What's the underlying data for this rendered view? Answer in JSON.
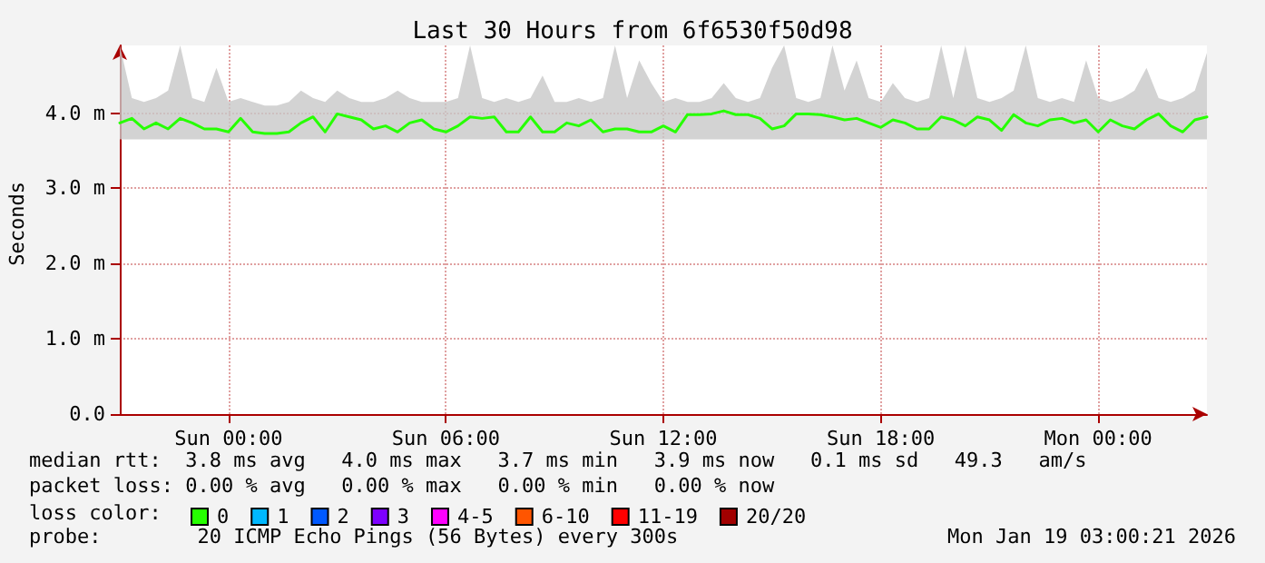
{
  "chart_data": {
    "type": "line",
    "title": "Last 30 Hours from 6f6530f50d98",
    "ylabel": "Seconds",
    "x": [
      "2026-01-17T21:00",
      "2026-01-17T21:20",
      "2026-01-17T21:40",
      "2026-01-17T22:00",
      "2026-01-17T22:20",
      "2026-01-17T22:40",
      "2026-01-17T23:00",
      "2026-01-17T23:20",
      "2026-01-17T23:40",
      "2026-01-18T00:00",
      "2026-01-18T00:20",
      "2026-01-18T00:40",
      "2026-01-18T01:00",
      "2026-01-18T01:20",
      "2026-01-18T01:40",
      "2026-01-18T02:00",
      "2026-01-18T02:20",
      "2026-01-18T02:40",
      "2026-01-18T03:00",
      "2026-01-18T03:20",
      "2026-01-18T03:40",
      "2026-01-18T04:00",
      "2026-01-18T04:20",
      "2026-01-18T04:40",
      "2026-01-18T05:00",
      "2026-01-18T05:20",
      "2026-01-18T05:40",
      "2026-01-18T06:00",
      "2026-01-18T06:20",
      "2026-01-18T06:40",
      "2026-01-18T07:00",
      "2026-01-18T07:20",
      "2026-01-18T07:40",
      "2026-01-18T08:00",
      "2026-01-18T08:20",
      "2026-01-18T08:40",
      "2026-01-18T09:00",
      "2026-01-18T09:20",
      "2026-01-18T09:40",
      "2026-01-18T10:00",
      "2026-01-18T10:20",
      "2026-01-18T10:40",
      "2026-01-18T11:00",
      "2026-01-18T11:20",
      "2026-01-18T11:40",
      "2026-01-18T12:00",
      "2026-01-18T12:20",
      "2026-01-18T12:40",
      "2026-01-18T13:00",
      "2026-01-18T13:20",
      "2026-01-18T13:40",
      "2026-01-18T14:00",
      "2026-01-18T14:20",
      "2026-01-18T14:40",
      "2026-01-18T15:00",
      "2026-01-18T15:20",
      "2026-01-18T15:40",
      "2026-01-18T16:00",
      "2026-01-18T16:20",
      "2026-01-18T16:40",
      "2026-01-18T17:00",
      "2026-01-18T17:20",
      "2026-01-18T17:40",
      "2026-01-18T18:00",
      "2026-01-18T18:20",
      "2026-01-18T18:40",
      "2026-01-18T19:00",
      "2026-01-18T19:20",
      "2026-01-18T19:40",
      "2026-01-18T20:00",
      "2026-01-18T20:20",
      "2026-01-18T20:40",
      "2026-01-18T21:00",
      "2026-01-18T21:20",
      "2026-01-18T21:40",
      "2026-01-18T22:00",
      "2026-01-18T22:20",
      "2026-01-18T22:40",
      "2026-01-18T23:00",
      "2026-01-18T23:20",
      "2026-01-18T23:40",
      "2026-01-19T00:00",
      "2026-01-19T00:20",
      "2026-01-19T00:40",
      "2026-01-19T01:00",
      "2026-01-19T01:20",
      "2026-01-19T01:40",
      "2026-01-19T02:00",
      "2026-01-19T02:20",
      "2026-01-19T02:40",
      "2026-01-19T03:00"
    ],
    "series": [
      {
        "name": "0",
        "color": "#26ff00",
        "values": [
          3.87,
          3.93,
          3.79,
          3.87,
          3.79,
          3.93,
          3.87,
          3.79,
          3.79,
          3.75,
          3.93,
          3.75,
          3.73,
          3.73,
          3.75,
          3.87,
          3.95,
          3.75,
          3.99,
          3.95,
          3.91,
          3.79,
          3.83,
          3.75,
          3.87,
          3.91,
          3.79,
          3.75,
          3.83,
          3.95,
          3.93,
          3.95,
          3.75,
          3.75,
          3.95,
          3.75,
          3.75,
          3.87,
          3.83,
          3.91,
          3.75,
          3.79,
          3.79,
          3.75,
          3.75,
          3.83,
          3.75,
          3.98,
          3.98,
          3.99,
          4.03,
          3.98,
          3.98,
          3.93,
          3.79,
          3.83,
          3.99,
          3.99,
          3.98,
          3.95,
          3.91,
          3.93,
          3.87,
          3.81,
          3.91,
          3.87,
          3.79,
          3.79,
          3.95,
          3.91,
          3.83,
          3.95,
          3.91,
          3.77,
          3.98,
          3.87,
          3.83,
          3.91,
          3.93,
          3.87,
          3.91,
          3.75,
          3.91,
          3.83,
          3.79,
          3.91,
          3.99,
          3.83,
          3.75,
          3.91,
          3.95
        ],
        "lower": [
          3.65,
          3.65,
          3.65,
          3.65,
          3.65,
          3.65,
          3.65,
          3.65,
          3.65,
          3.65,
          3.65,
          3.65,
          3.65,
          3.65,
          3.65,
          3.65,
          3.65,
          3.65,
          3.65,
          3.65,
          3.65,
          3.65,
          3.65,
          3.65,
          3.65,
          3.65,
          3.65,
          3.65,
          3.65,
          3.65,
          3.65,
          3.65,
          3.65,
          3.65,
          3.65,
          3.65,
          3.65,
          3.65,
          3.65,
          3.65,
          3.65,
          3.65,
          3.65,
          3.65,
          3.65,
          3.65,
          3.65,
          3.65,
          3.65,
          3.65,
          3.65,
          3.65,
          3.65,
          3.65,
          3.65,
          3.65,
          3.65,
          3.65,
          3.65,
          3.65,
          3.65,
          3.65,
          3.65,
          3.65,
          3.65,
          3.65,
          3.65,
          3.65,
          3.65,
          3.65,
          3.65,
          3.65,
          3.65,
          3.65,
          3.65,
          3.65,
          3.65,
          3.65,
          3.65,
          3.65,
          3.65,
          3.65,
          3.65,
          3.65,
          3.65,
          3.65,
          3.65,
          3.65,
          3.65,
          3.65,
          3.65
        ],
        "upper": [
          4.9,
          4.2,
          4.15,
          4.2,
          4.3,
          4.9,
          4.2,
          4.15,
          4.6,
          4.15,
          4.2,
          4.15,
          4.1,
          4.1,
          4.15,
          4.3,
          4.2,
          4.15,
          4.3,
          4.2,
          4.15,
          4.15,
          4.2,
          4.3,
          4.2,
          4.15,
          4.15,
          4.15,
          4.2,
          4.9,
          4.2,
          4.15,
          4.2,
          4.15,
          4.2,
          4.5,
          4.15,
          4.15,
          4.2,
          4.15,
          4.2,
          4.9,
          4.2,
          4.7,
          4.4,
          4.15,
          4.2,
          4.15,
          4.15,
          4.2,
          4.4,
          4.2,
          4.15,
          4.2,
          4.6,
          4.9,
          4.2,
          4.15,
          4.2,
          4.9,
          4.3,
          4.7,
          4.2,
          4.15,
          4.4,
          4.2,
          4.15,
          4.2,
          4.9,
          4.2,
          4.9,
          4.2,
          4.15,
          4.2,
          4.3,
          4.9,
          4.2,
          4.15,
          4.2,
          4.15,
          4.7,
          4.2,
          4.15,
          4.2,
          4.3,
          4.6,
          4.2,
          4.15,
          4.2,
          4.3,
          4.8
        ]
      },
      {
        "name": "1",
        "color": "#00b8ff",
        "values": [
          null,
          null,
          null,
          null,
          null,
          null,
          null,
          null,
          null,
          null,
          null,
          null,
          null,
          null,
          null,
          null,
          null,
          null,
          null,
          null,
          null,
          null,
          null,
          null,
          null,
          null,
          null,
          null,
          null,
          null,
          null,
          null,
          null,
          null,
          null,
          null,
          null,
          null,
          null,
          null,
          null,
          null,
          null,
          null,
          null,
          null,
          null,
          null,
          null,
          null,
          null,
          null,
          null,
          null,
          null,
          null,
          null,
          null,
          null,
          null,
          null,
          null,
          null,
          null,
          null,
          null,
          null,
          null,
          null,
          null,
          null,
          null,
          null,
          null,
          null,
          null,
          null,
          null,
          null,
          null,
          null,
          null,
          null,
          null,
          null,
          null,
          null,
          null,
          null,
          null,
          null
        ]
      },
      {
        "name": "2",
        "color": "#0059ff",
        "values": [
          null,
          null,
          null,
          null,
          null,
          null,
          null,
          null,
          null,
          null,
          null,
          null,
          null,
          null,
          null,
          null,
          null,
          null,
          null,
          null,
          null,
          null,
          null,
          null,
          null,
          null,
          null,
          null,
          null,
          null,
          null,
          null,
          null,
          null,
          null,
          null,
          null,
          null,
          null,
          null,
          null,
          null,
          null,
          null,
          null,
          null,
          null,
          null,
          null,
          null,
          null,
          null,
          null,
          null,
          null,
          null,
          null,
          null,
          null,
          null,
          null,
          null,
          null,
          null,
          null,
          null,
          null,
          null,
          null,
          null,
          null,
          null,
          null,
          null,
          null,
          null,
          null,
          null,
          null,
          null,
          null,
          null,
          null,
          null,
          null,
          null,
          null,
          null,
          null,
          null,
          null
        ]
      },
      {
        "name": "3",
        "color": "#7e00ff",
        "values": [
          null,
          null,
          null,
          null,
          null,
          null,
          null,
          null,
          null,
          null,
          null,
          null,
          null,
          null,
          null,
          null,
          null,
          null,
          null,
          null,
          null,
          null,
          null,
          null,
          null,
          null,
          null,
          null,
          null,
          null,
          null,
          null,
          null,
          null,
          null,
          null,
          null,
          null,
          null,
          null,
          null,
          null,
          null,
          null,
          null,
          null,
          null,
          null,
          null,
          null,
          null,
          null,
          null,
          null,
          null,
          null,
          null,
          null,
          null,
          null,
          null,
          null,
          null,
          null,
          null,
          null,
          null,
          null,
          null,
          null,
          null,
          null,
          null,
          null,
          null,
          null,
          null,
          null,
          null,
          null,
          null,
          null,
          null,
          null,
          null,
          null,
          null,
          null,
          null,
          null,
          null
        ]
      },
      {
        "name": "4-5",
        "color": "#ff00ff",
        "values": [
          null,
          null,
          null,
          null,
          null,
          null,
          null,
          null,
          null,
          null,
          null,
          null,
          null,
          null,
          null,
          null,
          null,
          null,
          null,
          null,
          null,
          null,
          null,
          null,
          null,
          null,
          null,
          null,
          null,
          null,
          null,
          null,
          null,
          null,
          null,
          null,
          null,
          null,
          null,
          null,
          null,
          null,
          null,
          null,
          null,
          null,
          null,
          null,
          null,
          null,
          null,
          null,
          null,
          null,
          null,
          null,
          null,
          null,
          null,
          null,
          null,
          null,
          null,
          null,
          null,
          null,
          null,
          null,
          null,
          null,
          null,
          null,
          null,
          null,
          null,
          null,
          null,
          null,
          null,
          null,
          null,
          null,
          null,
          null,
          null,
          null,
          null,
          null,
          null,
          null,
          null
        ]
      },
      {
        "name": "6-10",
        "color": "#ff5500",
        "values": [
          null,
          null,
          null,
          null,
          null,
          null,
          null,
          null,
          null,
          null,
          null,
          null,
          null,
          null,
          null,
          null,
          null,
          null,
          null,
          null,
          null,
          null,
          null,
          null,
          null,
          null,
          null,
          null,
          null,
          null,
          null,
          null,
          null,
          null,
          null,
          null,
          null,
          null,
          null,
          null,
          null,
          null,
          null,
          null,
          null,
          null,
          null,
          null,
          null,
          null,
          null,
          null,
          null,
          null,
          null,
          null,
          null,
          null,
          null,
          null,
          null,
          null,
          null,
          null,
          null,
          null,
          null,
          null,
          null,
          null,
          null,
          null,
          null,
          null,
          null,
          null,
          null,
          null,
          null,
          null,
          null,
          null,
          null,
          null,
          null,
          null,
          null,
          null,
          null,
          null,
          null
        ]
      },
      {
        "name": "11-19",
        "color": "#ff0000",
        "values": [
          null,
          null,
          null,
          null,
          null,
          null,
          null,
          null,
          null,
          null,
          null,
          null,
          null,
          null,
          null,
          null,
          null,
          null,
          null,
          null,
          null,
          null,
          null,
          null,
          null,
          null,
          null,
          null,
          null,
          null,
          null,
          null,
          null,
          null,
          null,
          null,
          null,
          null,
          null,
          null,
          null,
          null,
          null,
          null,
          null,
          null,
          null,
          null,
          null,
          null,
          null,
          null,
          null,
          null,
          null,
          null,
          null,
          null,
          null,
          null,
          null,
          null,
          null,
          null,
          null,
          null,
          null,
          null,
          null,
          null,
          null,
          null,
          null,
          null,
          null,
          null,
          null,
          null,
          null,
          null,
          null,
          null,
          null,
          null,
          null,
          null,
          null,
          null,
          null,
          null,
          null
        ]
      },
      {
        "name": "20/20",
        "color": "#a10000",
        "values": [
          null,
          null,
          null,
          null,
          null,
          null,
          null,
          null,
          null,
          null,
          null,
          null,
          null,
          null,
          null,
          null,
          null,
          null,
          null,
          null,
          null,
          null,
          null,
          null,
          null,
          null,
          null,
          null,
          null,
          null,
          null,
          null,
          null,
          null,
          null,
          null,
          null,
          null,
          null,
          null,
          null,
          null,
          null,
          null,
          null,
          null,
          null,
          null,
          null,
          null,
          null,
          null,
          null,
          null,
          null,
          null,
          null,
          null,
          null,
          null,
          null,
          null,
          null,
          null,
          null,
          null,
          null,
          null,
          null,
          null,
          null,
          null,
          null,
          null,
          null,
          null,
          null,
          null,
          null,
          null,
          null,
          null,
          null,
          null,
          null,
          null,
          null,
          null,
          null,
          null,
          null
        ]
      }
    ],
    "legend": "bottom",
    "legend_title": "loss color:",
    "xlim": [
      "2026-01-17T21:00",
      "2026-01-19T03:00"
    ],
    "xticks": [
      {
        "value": "2026-01-18T00:00",
        "label": "Sun 00:00"
      },
      {
        "value": "2026-01-18T06:00",
        "label": "Sun 06:00"
      },
      {
        "value": "2026-01-18T12:00",
        "label": "Sun 12:00"
      },
      {
        "value": "2026-01-18T18:00",
        "label": "Sun 18:00"
      },
      {
        "value": "2026-01-19T00:00",
        "label": "Mon 00:00"
      }
    ],
    "ylim": [
      0,
      4.9
    ],
    "yticks": [
      {
        "value": 0,
        "label": "0.0"
      },
      {
        "value": 1,
        "label": "1.0 m"
      },
      {
        "value": 2,
        "label": "2.0 m"
      },
      {
        "value": 3,
        "label": "3.0 m"
      },
      {
        "value": 4,
        "label": "4.0 m"
      }
    ],
    "grid": true,
    "marker": "none",
    "line_style": "solid",
    "annotations": [
      "median rtt:  3.8 ms avg   4.0 ms max   3.7 ms min   3.9 ms now   0.1 ms sd   49.3   am/s",
      "packet loss: 0.00 % avg   0.00 % max   0.00 % min   0.00 % now",
      "probe:        20 ICMP Echo Pings (56 Bytes) every 300s",
      "Mon Jan 19 03:00:21 2026"
    ]
  }
}
